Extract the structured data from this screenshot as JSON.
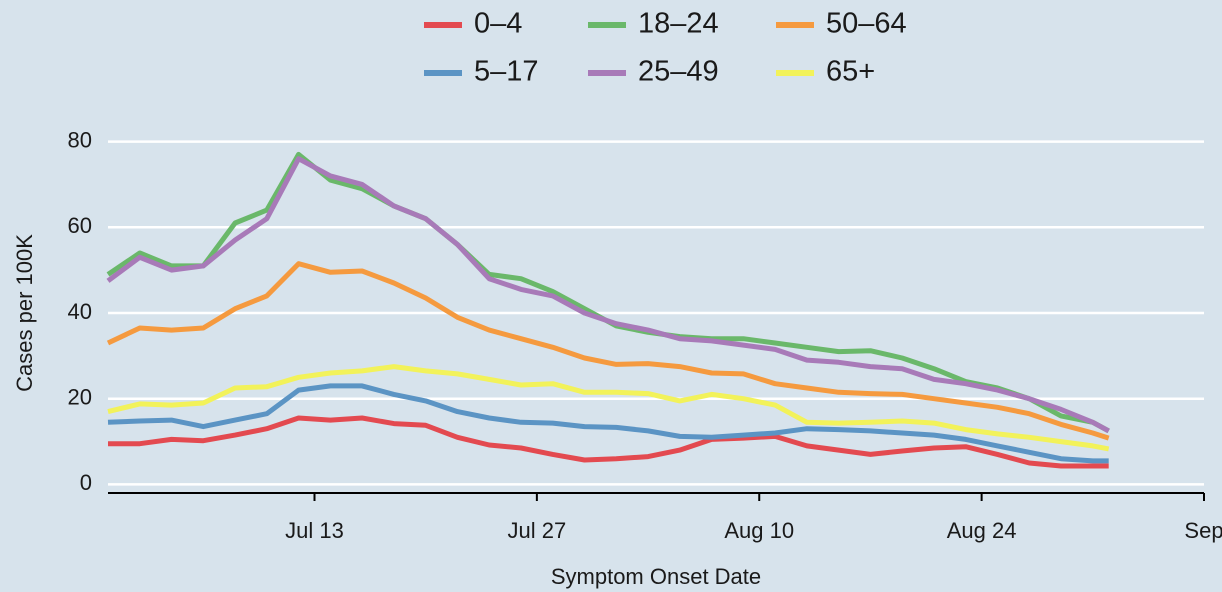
{
  "chart_data": {
    "type": "line",
    "x_label": "Symptom Onset Date",
    "y_label": "Cases per 100K",
    "legend": "top",
    "grid": true,
    "x": [
      "Jun 30",
      "Jul 2",
      "Jul 4",
      "Jul 6",
      "Jul 8",
      "Jul 10",
      "Jul 12",
      "Jul 14",
      "Jul 16",
      "Jul 18",
      "Jul 20",
      "Jul 22",
      "Jul 24",
      "Jul 26",
      "Jul 28",
      "Jul 30",
      "Aug 1",
      "Aug 3",
      "Aug 5",
      "Aug 7",
      "Aug 9",
      "Aug 11",
      "Aug 13",
      "Aug 15",
      "Aug 17",
      "Aug 19",
      "Aug 21",
      "Aug 23",
      "Aug 25",
      "Aug 27",
      "Aug 29",
      "Aug 31",
      "Sep 1"
    ],
    "xlim": [
      "Jun 30",
      "Sep 7"
    ],
    "xticks": [
      "Jul 13",
      "Jul 27",
      "Aug 10",
      "Aug 24",
      {
        "value": "Sep 7",
        "label": "Sep"
      }
    ],
    "ylim": [
      -2,
      82
    ],
    "yticks": [
      0,
      20,
      40,
      60,
      80
    ],
    "series": [
      {
        "name": "0–4",
        "color": "#e34a50",
        "values": [
          9.5,
          9.5,
          10.5,
          10.2,
          11.5,
          13,
          15.5,
          15,
          15.5,
          14.2,
          13.8,
          11,
          9.2,
          8.5,
          7,
          5.7,
          6,
          6.5,
          8,
          10.5,
          10.8,
          11.2,
          9,
          8,
          7,
          7.8,
          8.5,
          8.8,
          7,
          5,
          4.3,
          4.3,
          4.3
        ]
      },
      {
        "name": "5–17",
        "color": "#5b94c4",
        "values": [
          14.5,
          14.8,
          15,
          13.5,
          15,
          16.5,
          22,
          23,
          23,
          21,
          19.5,
          17,
          15.5,
          14.5,
          14.3,
          13.5,
          13.3,
          12.5,
          11.2,
          11,
          11.5,
          12,
          13,
          12.8,
          12.5,
          12,
          11.5,
          10.5,
          9,
          7.5,
          6,
          5.5,
          5.5
        ]
      },
      {
        "name": "18–24",
        "color": "#6ab86a",
        "values": [
          49,
          54,
          51,
          51,
          61,
          64,
          77,
          71,
          69,
          65,
          62,
          56,
          49,
          48,
          45,
          41,
          37,
          35.5,
          34.5,
          34,
          34,
          33,
          32,
          31,
          31.2,
          29.5,
          27,
          24,
          22.5,
          20,
          16,
          14.5,
          12.5
        ]
      },
      {
        "name": "25–49",
        "color": "#a87ab8",
        "values": [
          47.5,
          53,
          50,
          51,
          57,
          62,
          76,
          72,
          70,
          65,
          62,
          56,
          48,
          45.5,
          44,
          40,
          37.5,
          36,
          34,
          33.5,
          32.5,
          31.5,
          29,
          28.5,
          27.5,
          27,
          24.5,
          23.5,
          22,
          20,
          17.5,
          14.5,
          12.5
        ]
      },
      {
        "name": "50–64",
        "color": "#f59a3f",
        "values": [
          33,
          36.5,
          36,
          36.5,
          41,
          44,
          51.5,
          49.5,
          49.8,
          47,
          43.5,
          39,
          36,
          34,
          32,
          29.5,
          28,
          28.2,
          27.5,
          26,
          25.8,
          23.5,
          22.5,
          21.5,
          21.2,
          21,
          20,
          19,
          18,
          16.5,
          14,
          12,
          10.8
        ]
      },
      {
        "name": "65+",
        "color": "#f2f25a",
        "values": [
          17,
          18.8,
          18.5,
          19,
          22.5,
          22.8,
          25,
          26,
          26.5,
          27.5,
          26.5,
          25.8,
          24.5,
          23.2,
          23.5,
          21.5,
          21.5,
          21.2,
          19.5,
          21,
          20,
          18.5,
          14.5,
          14.3,
          14.5,
          14.8,
          14.3,
          12.8,
          11.8,
          11,
          10,
          9,
          8.3
        ]
      }
    ]
  }
}
